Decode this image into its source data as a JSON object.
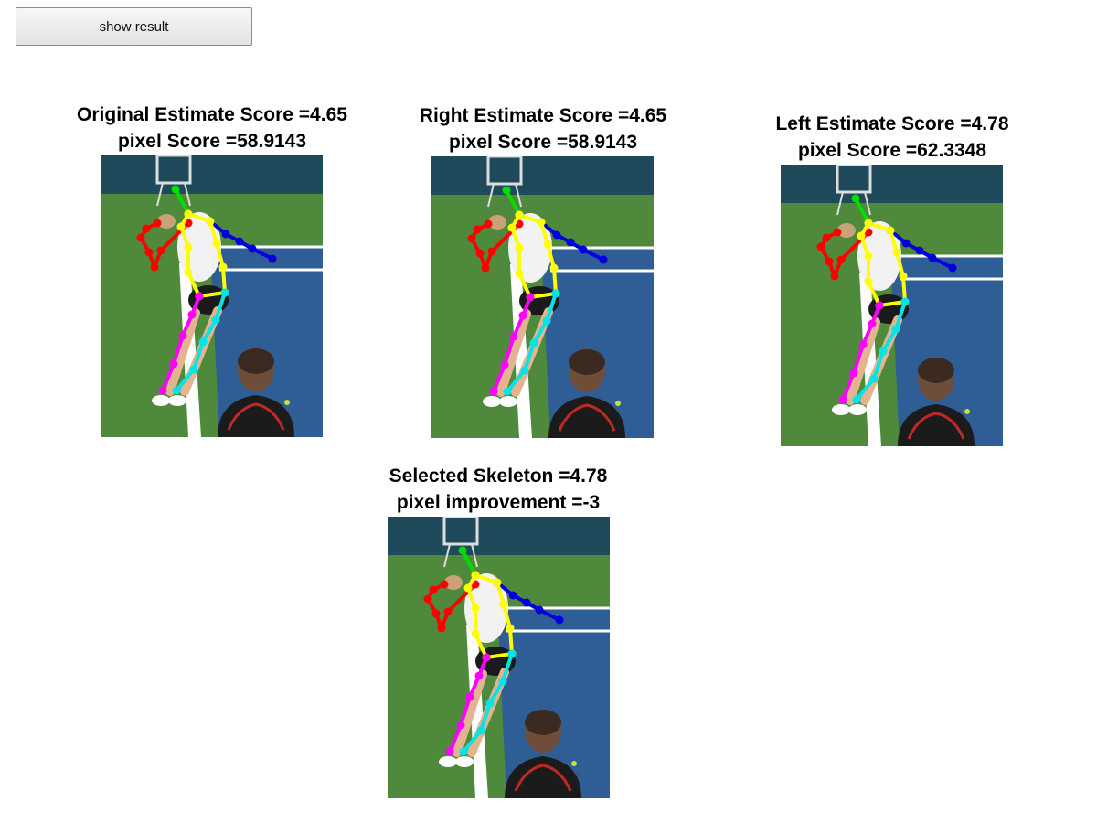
{
  "toolbar": {
    "show_result_label": "show result"
  },
  "panels": [
    {
      "id": "original",
      "title_line1": "Original Estimate Score =4.65",
      "title_line2": "pixel Score =58.9143"
    },
    {
      "id": "right",
      "title_line1": "Right Estimate Score =4.65",
      "title_line2": "pixel Score =58.9143"
    },
    {
      "id": "left",
      "title_line1": "Left Estimate Score =4.78",
      "title_line2": "pixel Score =62.3348"
    },
    {
      "id": "selected",
      "title_line1": "Selected Skeleton =4.78",
      "title_line2": "pixel improvement =-3"
    }
  ],
  "skeleton_colors": {
    "head": "#00dd00",
    "left_arm": "#ff0000",
    "right_arm": "#0000dd",
    "torso": "#ffff00",
    "left_leg": "#ff00ff",
    "right_leg": "#00e5e5"
  },
  "scene_colors": {
    "grass": "#4f8a3c",
    "court": "#2f5d95",
    "line": "#ffffff",
    "wall": "#1f4a5c"
  }
}
